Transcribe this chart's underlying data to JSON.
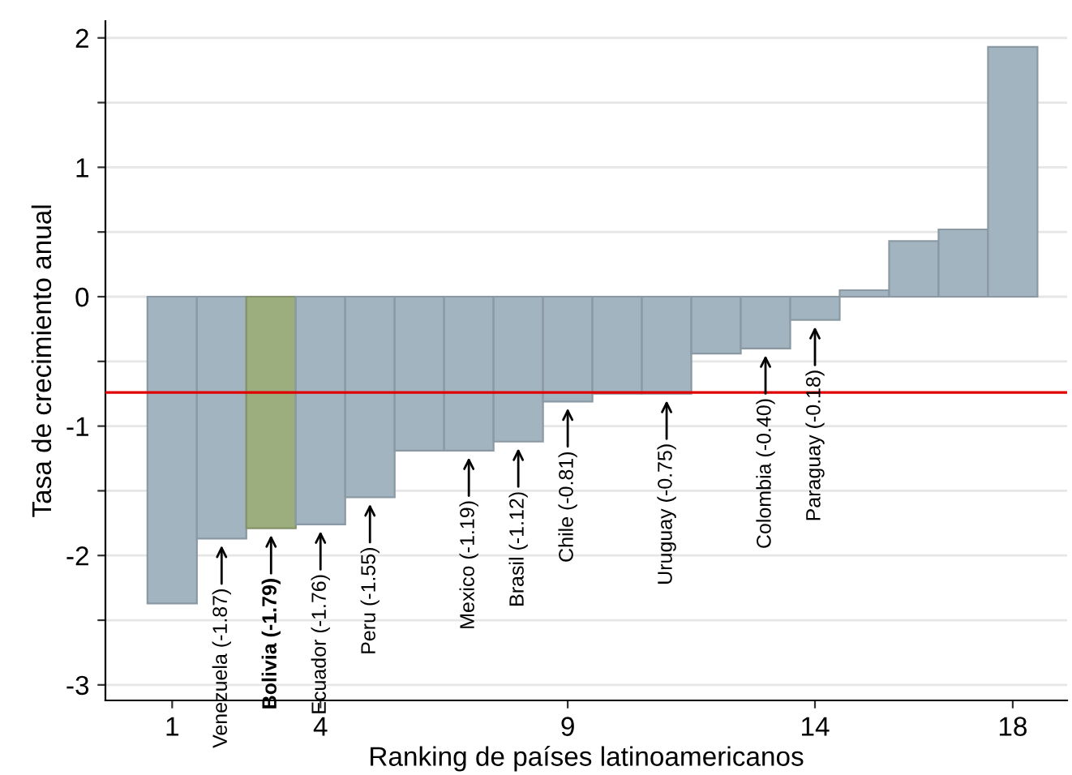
{
  "chart_data": {
    "type": "bar",
    "xlabel": "Ranking de países latinoamericanos",
    "ylabel": "Tasa de crecimiento anual",
    "x": [
      1,
      2,
      3,
      4,
      5,
      6,
      7,
      8,
      9,
      10,
      11,
      12,
      13,
      14,
      15,
      16,
      17,
      18
    ],
    "values": [
      -2.37,
      -1.87,
      -1.79,
      -1.76,
      -1.55,
      -1.19,
      -1.19,
      -1.12,
      -0.81,
      -0.75,
      -0.75,
      -0.44,
      -0.4,
      -0.18,
      0.05,
      0.43,
      0.52,
      1.93
    ],
    "colors": [
      "#a2b4c0",
      "#a2b4c0",
      "#9cad7e",
      "#a2b4c0",
      "#a2b4c0",
      "#a2b4c0",
      "#a2b4c0",
      "#a2b4c0",
      "#a2b4c0",
      "#a2b4c0",
      "#a2b4c0",
      "#a2b4c0",
      "#a2b4c0",
      "#a2b4c0",
      "#a2b4c0",
      "#a2b4c0",
      "#a2b4c0",
      "#a2b4c0"
    ],
    "xlim": [
      -0.35,
      19.1
    ],
    "xticks": [
      1,
      4,
      9,
      14,
      18
    ],
    "ylim": [
      -3.12,
      2.13
    ],
    "yticks": [
      -3,
      {
        "value": -2.5,
        "label": null
      },
      -2,
      {
        "value": -1.5,
        "label": null
      },
      -1,
      {
        "value": -0.5,
        "label": null
      },
      0,
      {
        "value": 0.5,
        "label": null
      },
      1,
      {
        "value": 1.5,
        "label": null
      },
      2
    ],
    "grid": "y",
    "ref_lines": [
      {
        "axis": "y",
        "value": -0.74,
        "color": "#e00000"
      }
    ],
    "annotations": [
      {
        "text": "Venezuela (-1.87)",
        "x": 2,
        "y": -1.87
      },
      {
        "text": "Bolivia (-1.79)",
        "x": 3,
        "y": -1.79
      },
      {
        "text": "Ecuador (-1.76)",
        "x": 4,
        "y": -1.76
      },
      {
        "text": "Peru (-1.55)",
        "x": 5,
        "y": -1.55
      },
      {
        "text": "Mexico (-1.19)",
        "x": 7,
        "y": -1.19
      },
      {
        "text": "Brasil (-1.12)",
        "x": 8,
        "y": -1.12
      },
      {
        "text": "Chile (-0.81)",
        "x": 9,
        "y": -0.81
      },
      {
        "text": "Uruguay (-0.75)",
        "x": 11,
        "y": -0.75
      },
      {
        "text": "Colombia (-0.40)",
        "x": 13,
        "y": -0.4
      },
      {
        "text": "Paraguay (-0.18)",
        "x": 14,
        "y": -0.18
      }
    ]
  }
}
